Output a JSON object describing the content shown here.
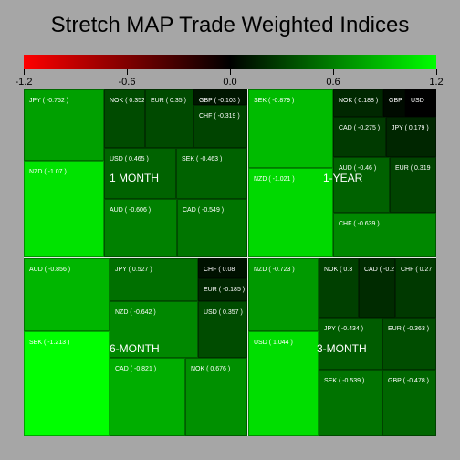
{
  "title": "Stretch MAP Trade Weighted Indices",
  "scale": {
    "min": -1.2,
    "max": 1.2,
    "low_color": "#ff0000",
    "mid_color": "#000000",
    "high_color": "#00ff00",
    "ticks": [
      "-1.2",
      "-0.6",
      "0.0",
      "0.6",
      "1.2"
    ]
  },
  "chart_data": {
    "type": "heatmap",
    "title": "Stretch MAP Trade Weighted Indices",
    "color_range": [
      -1.2,
      1.2
    ],
    "panels": [
      {
        "name": "1 MONTH",
        "cells": [
          {
            "label": "JPY ( -0.752 )",
            "value": -0.752
          },
          {
            "label": "NZD ( -1.07 )",
            "value": -1.07
          },
          {
            "label": "NOK ( 0.352",
            "value": 0.352
          },
          {
            "label": "EUR ( 0.35 )",
            "value": 0.35
          },
          {
            "label": "GBP ( -0.103 )",
            "value": -0.103
          },
          {
            "label": "CHF ( -0.319 )",
            "value": -0.319
          },
          {
            "label": "USD ( 0.465 )",
            "value": 0.465
          },
          {
            "label": "SEK ( -0.463 )",
            "value": -0.463
          },
          {
            "label": "AUD ( -0.606 )",
            "value": -0.606
          },
          {
            "label": "CAD ( -0.549 )",
            "value": -0.549
          }
        ]
      },
      {
        "name": "1-YEAR",
        "cells": [
          {
            "label": "SEK ( -0.879 )",
            "value": -0.879
          },
          {
            "label": "NZD ( -1.021 )",
            "value": -1.021
          },
          {
            "label": "NOK ( 0.188 )",
            "value": 0.188
          },
          {
            "label": "GBP",
            "value": 0.05
          },
          {
            "label": "USD",
            "value": 0.0
          },
          {
            "label": "CAD ( -0.275 )",
            "value": -0.275
          },
          {
            "label": "JPY ( 0.179 )",
            "value": 0.179
          },
          {
            "label": "AUD ( -0.46 )",
            "value": -0.46
          },
          {
            "label": "EUR ( 0.319",
            "value": 0.319
          },
          {
            "label": "CHF ( -0.639 )",
            "value": -0.639
          }
        ]
      },
      {
        "name": "6-MONTH",
        "cells": [
          {
            "label": "AUD ( -0.856 )",
            "value": -0.856
          },
          {
            "label": "SEK ( -1.213 )",
            "value": -1.213
          },
          {
            "label": "JPY ( 0.527 )",
            "value": 0.527
          },
          {
            "label": "CHF ( 0.08",
            "value": 0.08
          },
          {
            "label": "EUR ( -0.185 )",
            "value": -0.185
          },
          {
            "label": "NZD ( -0.642 )",
            "value": -0.642
          },
          {
            "label": "USD ( 0.357 )",
            "value": 0.357
          },
          {
            "label": "CAD ( -0.821 )",
            "value": -0.821
          },
          {
            "label": "NOK ( 0.676 )",
            "value": 0.676
          }
        ]
      },
      {
        "name": "3-MONTH",
        "cells": [
          {
            "label": "NZD ( -0.723 )",
            "value": -0.723
          },
          {
            "label": "USD ( 1.044 )",
            "value": 1.044
          },
          {
            "label": "NOK ( 0.3",
            "value": 0.3
          },
          {
            "label": "CAD ( -0.2",
            "value": -0.2
          },
          {
            "label": "CHF ( 0.27",
            "value": 0.27
          },
          {
            "label": "JPY ( -0.434 )",
            "value": -0.434
          },
          {
            "label": "EUR ( -0.363 )",
            "value": -0.363
          },
          {
            "label": "SEK ( -0.539 )",
            "value": -0.539
          },
          {
            "label": "GBP ( -0.478 )",
            "value": -0.478
          }
        ]
      }
    ]
  }
}
